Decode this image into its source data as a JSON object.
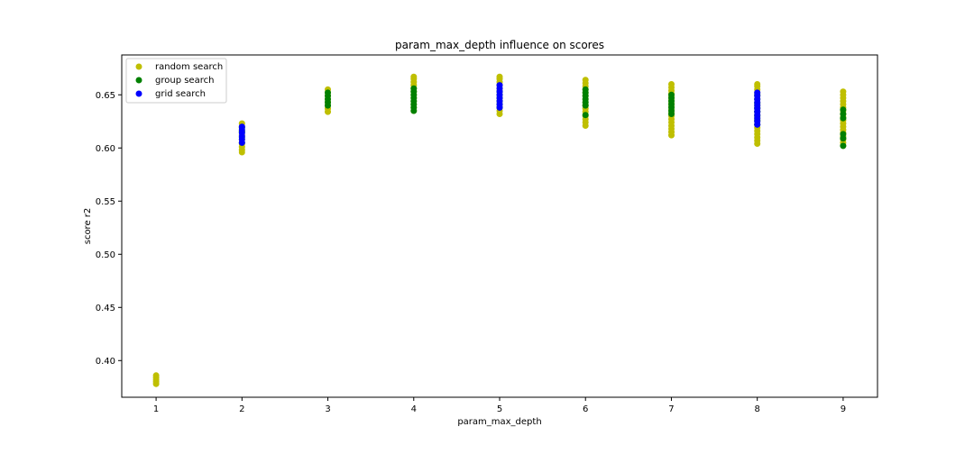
{
  "chart_data": {
    "type": "scatter",
    "title": "param_max_depth influence on scores",
    "xlabel": "param_max_depth",
    "ylabel": "score r2",
    "xlim": [
      0.6,
      9.4
    ],
    "ylim": [
      0.3655,
      0.6875
    ],
    "x_ticks": [
      1,
      2,
      3,
      4,
      5,
      6,
      7,
      8,
      9
    ],
    "y_ticks": [
      "0.40",
      "0.45",
      "0.50",
      "0.55",
      "0.60",
      "0.65"
    ],
    "grid": false,
    "legend_position": "upper-left",
    "series": [
      {
        "name": "random search",
        "color": "#bfbf00",
        "points": [
          [
            1,
            0.378
          ],
          [
            1,
            0.38
          ],
          [
            1,
            0.382
          ],
          [
            1,
            0.384
          ],
          [
            1,
            0.386
          ],
          [
            2,
            0.596
          ],
          [
            2,
            0.598
          ],
          [
            2,
            0.601
          ],
          [
            2,
            0.604
          ],
          [
            2,
            0.608
          ],
          [
            2,
            0.612
          ],
          [
            2,
            0.616
          ],
          [
            2,
            0.62
          ],
          [
            2,
            0.623
          ],
          [
            3,
            0.634
          ],
          [
            3,
            0.637
          ],
          [
            3,
            0.64
          ],
          [
            3,
            0.643
          ],
          [
            3,
            0.646
          ],
          [
            3,
            0.649
          ],
          [
            3,
            0.652
          ],
          [
            3,
            0.655
          ],
          [
            4,
            0.635
          ],
          [
            4,
            0.638
          ],
          [
            4,
            0.641
          ],
          [
            4,
            0.644
          ],
          [
            4,
            0.647
          ],
          [
            4,
            0.65
          ],
          [
            4,
            0.653
          ],
          [
            4,
            0.656
          ],
          [
            4,
            0.659
          ],
          [
            4,
            0.662
          ],
          [
            4,
            0.665
          ],
          [
            4,
            0.667
          ],
          [
            5,
            0.632
          ],
          [
            5,
            0.635
          ],
          [
            5,
            0.638
          ],
          [
            5,
            0.641
          ],
          [
            5,
            0.644
          ],
          [
            5,
            0.647
          ],
          [
            5,
            0.65
          ],
          [
            5,
            0.653
          ],
          [
            5,
            0.656
          ],
          [
            5,
            0.659
          ],
          [
            5,
            0.662
          ],
          [
            5,
            0.665
          ],
          [
            5,
            0.667
          ],
          [
            6,
            0.621
          ],
          [
            6,
            0.624
          ],
          [
            6,
            0.627
          ],
          [
            6,
            0.63
          ],
          [
            6,
            0.634
          ],
          [
            6,
            0.637
          ],
          [
            6,
            0.64
          ],
          [
            6,
            0.643
          ],
          [
            6,
            0.646
          ],
          [
            6,
            0.649
          ],
          [
            6,
            0.652
          ],
          [
            6,
            0.655
          ],
          [
            6,
            0.658
          ],
          [
            6,
            0.661
          ],
          [
            6,
            0.664
          ],
          [
            7,
            0.612
          ],
          [
            7,
            0.615
          ],
          [
            7,
            0.618
          ],
          [
            7,
            0.621
          ],
          [
            7,
            0.624
          ],
          [
            7,
            0.627
          ],
          [
            7,
            0.63
          ],
          [
            7,
            0.633
          ],
          [
            7,
            0.636
          ],
          [
            7,
            0.639
          ],
          [
            7,
            0.642
          ],
          [
            7,
            0.645
          ],
          [
            7,
            0.648
          ],
          [
            7,
            0.651
          ],
          [
            7,
            0.654
          ],
          [
            7,
            0.657
          ],
          [
            7,
            0.66
          ],
          [
            8,
            0.604
          ],
          [
            8,
            0.607
          ],
          [
            8,
            0.61
          ],
          [
            8,
            0.613
          ],
          [
            8,
            0.616
          ],
          [
            8,
            0.619
          ],
          [
            8,
            0.622
          ],
          [
            8,
            0.625
          ],
          [
            8,
            0.628
          ],
          [
            8,
            0.631
          ],
          [
            8,
            0.634
          ],
          [
            8,
            0.637
          ],
          [
            8,
            0.64
          ],
          [
            8,
            0.643
          ],
          [
            8,
            0.646
          ],
          [
            8,
            0.649
          ],
          [
            8,
            0.652
          ],
          [
            8,
            0.655
          ],
          [
            8,
            0.658
          ],
          [
            8,
            0.66
          ],
          [
            9,
            0.602
          ],
          [
            9,
            0.605
          ],
          [
            9,
            0.608
          ],
          [
            9,
            0.611
          ],
          [
            9,
            0.614
          ],
          [
            9,
            0.617
          ],
          [
            9,
            0.62
          ],
          [
            9,
            0.623
          ],
          [
            9,
            0.626
          ],
          [
            9,
            0.629
          ],
          [
            9,
            0.632
          ],
          [
            9,
            0.635
          ],
          [
            9,
            0.638
          ],
          [
            9,
            0.641
          ],
          [
            9,
            0.644
          ],
          [
            9,
            0.647
          ],
          [
            9,
            0.65
          ],
          [
            9,
            0.653
          ]
        ]
      },
      {
        "name": "group search",
        "color": "#008000",
        "points": [
          [
            2,
            0.605
          ],
          [
            2,
            0.61
          ],
          [
            2,
            0.615
          ],
          [
            2,
            0.619
          ],
          [
            3,
            0.64
          ],
          [
            3,
            0.643
          ],
          [
            3,
            0.646
          ],
          [
            3,
            0.649
          ],
          [
            3,
            0.652
          ],
          [
            4,
            0.635
          ],
          [
            4,
            0.638
          ],
          [
            4,
            0.641
          ],
          [
            4,
            0.644
          ],
          [
            4,
            0.647
          ],
          [
            4,
            0.65
          ],
          [
            4,
            0.653
          ],
          [
            4,
            0.656
          ],
          [
            5,
            0.638
          ],
          [
            5,
            0.641
          ],
          [
            5,
            0.644
          ],
          [
            5,
            0.647
          ],
          [
            5,
            0.65
          ],
          [
            5,
            0.653
          ],
          [
            6,
            0.631
          ],
          [
            6,
            0.64
          ],
          [
            6,
            0.643
          ],
          [
            6,
            0.646
          ],
          [
            6,
            0.649
          ],
          [
            6,
            0.652
          ],
          [
            6,
            0.655
          ],
          [
            7,
            0.632
          ],
          [
            7,
            0.635
          ],
          [
            7,
            0.638
          ],
          [
            7,
            0.641
          ],
          [
            7,
            0.644
          ],
          [
            7,
            0.647
          ],
          [
            7,
            0.65
          ],
          [
            8,
            0.622
          ],
          [
            8,
            0.626
          ],
          [
            8,
            0.63
          ],
          [
            8,
            0.634
          ],
          [
            8,
            0.638
          ],
          [
            8,
            0.642
          ],
          [
            8,
            0.646
          ],
          [
            8,
            0.65
          ],
          [
            9,
            0.602
          ],
          [
            9,
            0.609
          ],
          [
            9,
            0.613
          ],
          [
            9,
            0.628
          ],
          [
            9,
            0.632
          ],
          [
            9,
            0.636
          ]
        ]
      },
      {
        "name": "grid search",
        "color": "#0000ff",
        "points": [
          [
            2,
            0.605
          ],
          [
            2,
            0.608
          ],
          [
            2,
            0.611
          ],
          [
            2,
            0.614
          ],
          [
            2,
            0.617
          ],
          [
            2,
            0.62
          ],
          [
            5,
            0.638
          ],
          [
            5,
            0.641
          ],
          [
            5,
            0.644
          ],
          [
            5,
            0.647
          ],
          [
            5,
            0.65
          ],
          [
            5,
            0.653
          ],
          [
            5,
            0.656
          ],
          [
            5,
            0.659
          ],
          [
            8,
            0.622
          ],
          [
            8,
            0.625
          ],
          [
            8,
            0.628
          ],
          [
            8,
            0.631
          ],
          [
            8,
            0.634
          ],
          [
            8,
            0.637
          ],
          [
            8,
            0.64
          ],
          [
            8,
            0.643
          ],
          [
            8,
            0.646
          ],
          [
            8,
            0.649
          ],
          [
            8,
            0.652
          ]
        ]
      }
    ]
  }
}
